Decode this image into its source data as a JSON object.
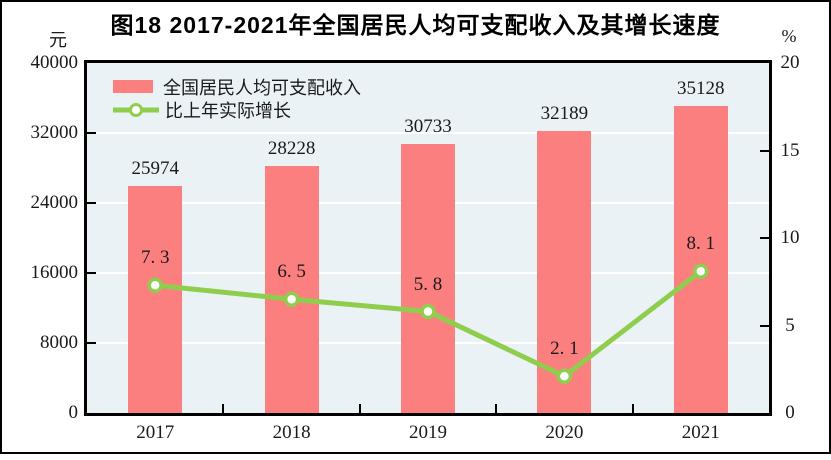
{
  "figure": {
    "title": "图18  2017-2021年全国居民人均可支配收入及其增长速度",
    "left_axis_unit": "元",
    "right_axis_unit": "%"
  },
  "legend": [
    {
      "type": "bar",
      "label": "全国居民人均可支配收入"
    },
    {
      "type": "line",
      "label": "比上年实际增长"
    }
  ],
  "colors": {
    "bar": "#fc7f7f",
    "line": "#8fce4c",
    "marker_fill": "#ffffff",
    "plot_background": "#eaf2f6",
    "gridline": "#ffffff",
    "axis": "#000000",
    "text": "#1a1a1a",
    "title": "#000000"
  },
  "chart_data": {
    "type": "bar",
    "categories": [
      "2017",
      "2018",
      "2019",
      "2020",
      "2021"
    ],
    "series": [
      {
        "name": "全国居民人均可支配收入",
        "type": "bar",
        "axis": "left",
        "values": [
          25974,
          28228,
          30733,
          32189,
          35128
        ],
        "labels": [
          "25974",
          "28228",
          "30733",
          "32189",
          "35128"
        ]
      },
      {
        "name": "比上年实际增长",
        "type": "line",
        "axis": "right",
        "values": [
          7.3,
          6.5,
          5.8,
          2.1,
          8.1
        ],
        "labels": [
          "7. 3",
          "6. 5",
          "5. 8",
          "2. 1",
          "8. 1"
        ]
      }
    ],
    "left_axis": {
      "min": 0,
      "max": 40000,
      "tick_labels": [
        "40000",
        "32000",
        "24000",
        "16000",
        "8000",
        "0"
      ]
    },
    "right_axis": {
      "min": 0,
      "max": 20,
      "tick_labels": [
        "20",
        "15",
        "10",
        "5",
        "0"
      ]
    },
    "grid": "horizontal",
    "legend_position": "top-left-inside",
    "title": "图18  2017-2021年全国居民人均可支配收入及其增长速度"
  }
}
